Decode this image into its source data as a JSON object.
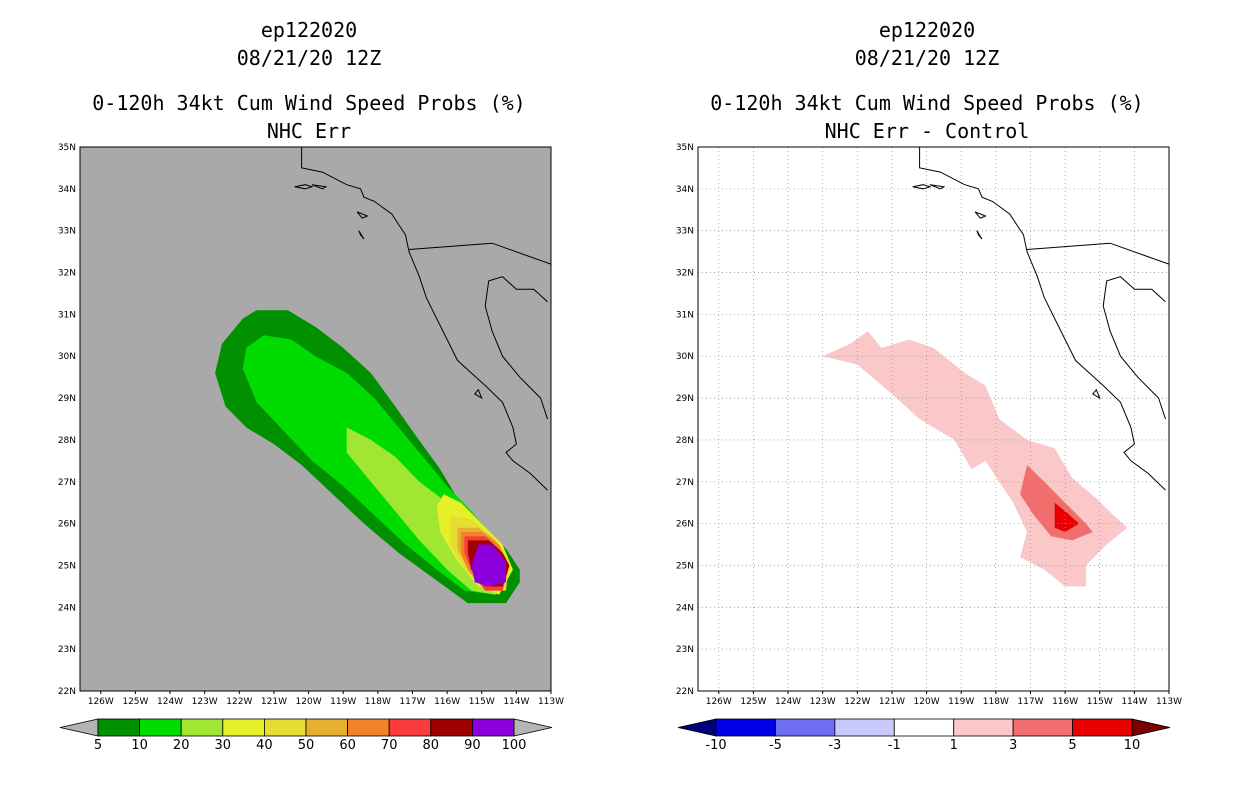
{
  "left_panel": {
    "title_storm": "ep122020",
    "title_date": "08/21/20 12Z",
    "title_product": "0-120h 34kt Cum Wind Speed Probs (%)",
    "title_subtitle": "NHC Err"
  },
  "right_panel": {
    "title_storm": "ep122020",
    "title_date": "08/21/20 12Z",
    "title_product": "0-120h 34kt Cum Wind Speed Probs (%)",
    "title_subtitle": "NHC Err - Control"
  },
  "chart_data": [
    {
      "type": "heatmap",
      "title": "0-120h 34kt Cum Wind Speed Probs (%)",
      "subtitle": "NHC Err",
      "x_ticks": [
        "126W",
        "125W",
        "124W",
        "123W",
        "122W",
        "121W",
        "120W",
        "119W",
        "118W",
        "117W",
        "116W",
        "115W",
        "114W",
        "113W"
      ],
      "y_ticks": [
        "22N",
        "23N",
        "24N",
        "25N",
        "26N",
        "27N",
        "28N",
        "29N",
        "30N",
        "31N",
        "32N",
        "33N",
        "34N",
        "35N"
      ],
      "xlim": [
        -126.6,
        -113
      ],
      "ylim": [
        22,
        35
      ],
      "grid": false,
      "colorbar_labels": [
        "5",
        "10",
        "20",
        "30",
        "40",
        "50",
        "60",
        "70",
        "80",
        "90",
        "100"
      ],
      "colorbar_colors": [
        "#009000",
        "#00dc00",
        "#a0e632",
        "#e6f028",
        "#e6dc32",
        "#e6af2d",
        "#f08228",
        "#fa3c3c",
        "#a00000",
        "#8c00dc"
      ],
      "colors": {
        "background": "#a9a9a9"
      },
      "contours": [
        {
          "level": 5,
          "color": "#009000",
          "points": [
            [
              -122.7,
              29.6
            ],
            [
              -122.5,
              30.3
            ],
            [
              -121.9,
              30.9
            ],
            [
              -121.5,
              31.1
            ],
            [
              -120.6,
              31.1
            ],
            [
              -119.8,
              30.7
            ],
            [
              -119.0,
              30.2
            ],
            [
              -118.2,
              29.6
            ],
            [
              -117.5,
              28.8
            ],
            [
              -116.9,
              28.1
            ],
            [
              -116.2,
              27.3
            ],
            [
              -115.7,
              26.6
            ],
            [
              -115.0,
              26.0
            ],
            [
              -114.3,
              25.4
            ],
            [
              -113.9,
              24.9
            ],
            [
              -113.9,
              24.6
            ],
            [
              -114.3,
              24.1
            ],
            [
              -115.4,
              24.1
            ],
            [
              -116.4,
              24.7
            ],
            [
              -117.4,
              25.3
            ],
            [
              -118.4,
              26.0
            ],
            [
              -119.3,
              26.7
            ],
            [
              -120.2,
              27.4
            ],
            [
              -121.0,
              27.9
            ],
            [
              -121.8,
              28.3
            ],
            [
              -122.4,
              28.8
            ]
          ]
        },
        {
          "level": 10,
          "color": "#00dc00",
          "points": [
            [
              -121.9,
              29.7
            ],
            [
              -121.8,
              30.2
            ],
            [
              -121.3,
              30.5
            ],
            [
              -120.5,
              30.4
            ],
            [
              -119.8,
              30.0
            ],
            [
              -118.9,
              29.6
            ],
            [
              -118.1,
              29.0
            ],
            [
              -117.4,
              28.3
            ],
            [
              -116.7,
              27.6
            ],
            [
              -116.0,
              26.9
            ],
            [
              -115.3,
              26.3
            ],
            [
              -114.6,
              25.6
            ],
            [
              -114.2,
              24.9
            ],
            [
              -114.6,
              24.3
            ],
            [
              -115.5,
              24.4
            ],
            [
              -116.3,
              24.9
            ],
            [
              -117.2,
              25.5
            ],
            [
              -118.1,
              26.2
            ],
            [
              -119.0,
              26.9
            ],
            [
              -119.9,
              27.5
            ],
            [
              -120.7,
              28.2
            ],
            [
              -121.5,
              28.9
            ]
          ]
        },
        {
          "level": 20,
          "color": "#a0e632",
          "points": [
            [
              -118.9,
              28.3
            ],
            [
              -118.2,
              28.0
            ],
            [
              -117.5,
              27.6
            ],
            [
              -116.8,
              27.0
            ],
            [
              -116.0,
              26.5
            ],
            [
              -115.3,
              26.0
            ],
            [
              -114.6,
              25.5
            ],
            [
              -114.2,
              24.9
            ],
            [
              -114.6,
              24.3
            ],
            [
              -115.3,
              24.4
            ],
            [
              -116.0,
              24.9
            ],
            [
              -116.8,
              25.6
            ],
            [
              -117.7,
              26.5
            ],
            [
              -118.3,
              27.1
            ],
            [
              -118.9,
              27.7
            ]
          ]
        },
        {
          "level": 30,
          "color": "#e6f028",
          "points": [
            [
              -116.1,
              26.7
            ],
            [
              -115.6,
              26.5
            ],
            [
              -115.0,
              26.0
            ],
            [
              -114.4,
              25.5
            ],
            [
              -114.1,
              24.9
            ],
            [
              -114.5,
              24.3
            ],
            [
              -115.1,
              24.5
            ],
            [
              -115.7,
              25.1
            ],
            [
              -116.2,
              25.8
            ],
            [
              -116.3,
              26.4
            ]
          ]
        },
        {
          "level": 40,
          "color": "#e6dc32",
          "points": [
            [
              -115.9,
              26.2
            ],
            [
              -115.3,
              26.1
            ],
            [
              -114.7,
              25.7
            ],
            [
              -114.2,
              25.1
            ],
            [
              -114.3,
              24.4
            ],
            [
              -114.9,
              24.4
            ],
            [
              -115.5,
              24.9
            ],
            [
              -115.9,
              25.5
            ]
          ]
        },
        {
          "level": 50,
          "color": "#e6af2d",
          "points": [
            [
              -115.7,
              25.9
            ],
            [
              -115.1,
              25.9
            ],
            [
              -114.6,
              25.6
            ],
            [
              -114.2,
              25.0
            ],
            [
              -114.4,
              24.4
            ],
            [
              -114.9,
              24.4
            ],
            [
              -115.4,
              24.9
            ],
            [
              -115.7,
              25.4
            ]
          ]
        },
        {
          "level": 60,
          "color": "#f08228",
          "points": [
            [
              -115.6,
              25.8
            ],
            [
              -115.0,
              25.8
            ],
            [
              -114.5,
              25.5
            ],
            [
              -114.2,
              25.0
            ],
            [
              -114.4,
              24.4
            ],
            [
              -114.9,
              24.4
            ],
            [
              -115.4,
              24.9
            ],
            [
              -115.6,
              25.3
            ]
          ]
        },
        {
          "level": 70,
          "color": "#fa3c3c",
          "points": [
            [
              -115.5,
              25.7
            ],
            [
              -114.9,
              25.7
            ],
            [
              -114.5,
              25.4
            ],
            [
              -114.2,
              25.0
            ],
            [
              -114.4,
              24.4
            ],
            [
              -114.9,
              24.4
            ],
            [
              -115.3,
              24.9
            ],
            [
              -115.5,
              25.3
            ]
          ]
        },
        {
          "level": 80,
          "color": "#a00000",
          "points": [
            [
              -115.4,
              25.6
            ],
            [
              -114.8,
              25.6
            ],
            [
              -114.4,
              25.3
            ],
            [
              -114.2,
              25.0
            ],
            [
              -114.4,
              24.5
            ],
            [
              -114.9,
              24.5
            ],
            [
              -115.3,
              24.9
            ],
            [
              -115.4,
              25.3
            ]
          ]
        },
        {
          "level": 90,
          "color": "#8c00dc",
          "points": [
            [
              -115.1,
              25.5
            ],
            [
              -114.7,
              25.5
            ],
            [
              -114.3,
              25.1
            ],
            [
              -114.3,
              24.6
            ],
            [
              -114.8,
              24.5
            ],
            [
              -115.2,
              24.6
            ],
            [
              -115.3,
              25.0
            ]
          ]
        }
      ]
    },
    {
      "type": "heatmap",
      "title": "0-120h 34kt Cum Wind Speed Probs (%)",
      "subtitle": "NHC Err - Control",
      "x_ticks": [
        "126W",
        "125W",
        "124W",
        "123W",
        "122W",
        "121W",
        "120W",
        "119W",
        "118W",
        "117W",
        "116W",
        "115W",
        "114W",
        "113W"
      ],
      "y_ticks": [
        "22N",
        "23N",
        "24N",
        "25N",
        "26N",
        "27N",
        "28N",
        "29N",
        "30N",
        "31N",
        "32N",
        "33N",
        "34N",
        "35N"
      ],
      "xlim": [
        -126.6,
        -113
      ],
      "ylim": [
        22,
        35
      ],
      "grid": true,
      "colorbar_labels": [
        "-10",
        "-5",
        "-3",
        "-1",
        "1",
        "3",
        "5",
        "10"
      ],
      "colorbar_colors": [
        "#0000e6",
        "#6e6ef0",
        "#c8c8fa",
        "#ffffff",
        "#fac8c8",
        "#f06e6e",
        "#e60000"
      ],
      "colors": {
        "background": "#ffffff",
        "end_low": "#000078",
        "end_high": "#780000"
      },
      "contours": [
        {
          "level": 1,
          "color": "#fac8c8",
          "points": [
            [
              -123.0,
              30.0
            ],
            [
              -122.2,
              30.3
            ],
            [
              -121.7,
              30.6
            ],
            [
              -121.3,
              30.2
            ],
            [
              -120.5,
              30.4
            ],
            [
              -119.8,
              30.2
            ],
            [
              -118.9,
              29.6
            ],
            [
              -118.3,
              29.3
            ],
            [
              -117.9,
              28.5
            ],
            [
              -117.1,
              28.0
            ],
            [
              -116.3,
              27.8
            ],
            [
              -115.8,
              27.1
            ],
            [
              -115.1,
              26.6
            ],
            [
              -114.6,
              26.2
            ],
            [
              -114.2,
              25.9
            ],
            [
              -114.8,
              25.5
            ],
            [
              -115.4,
              25.0
            ],
            [
              -115.4,
              24.5
            ],
            [
              -116.0,
              24.5
            ],
            [
              -116.6,
              24.9
            ],
            [
              -117.3,
              25.2
            ],
            [
              -117.1,
              25.8
            ],
            [
              -117.5,
              26.5
            ],
            [
              -118.3,
              27.5
            ],
            [
              -118.7,
              27.3
            ],
            [
              -119.2,
              28.0
            ],
            [
              -120.2,
              28.5
            ],
            [
              -121.0,
              29.1
            ],
            [
              -122.0,
              29.8
            ]
          ]
        },
        {
          "level": 3,
          "color": "#f06e6e",
          "points": [
            [
              -117.1,
              27.4
            ],
            [
              -116.6,
              27.0
            ],
            [
              -116.0,
              26.5
            ],
            [
              -115.4,
              26.0
            ],
            [
              -115.2,
              25.8
            ],
            [
              -115.8,
              25.6
            ],
            [
              -116.4,
              25.7
            ],
            [
              -116.9,
              26.2
            ],
            [
              -117.3,
              26.7
            ]
          ]
        },
        {
          "level": 5,
          "color": "#e60000",
          "points": [
            [
              -116.3,
              26.5
            ],
            [
              -116.0,
              26.3
            ],
            [
              -115.6,
              26.0
            ],
            [
              -116.0,
              25.8
            ],
            [
              -116.3,
              25.9
            ]
          ]
        }
      ]
    }
  ]
}
